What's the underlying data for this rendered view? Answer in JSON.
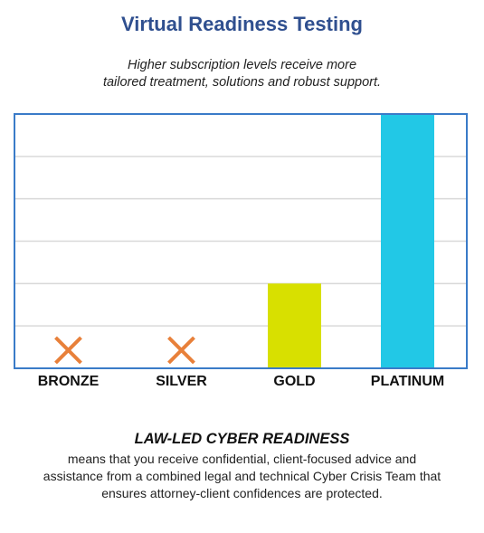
{
  "title": "Virtual Readiness Testing",
  "subtitle_lines": [
    "Higher subscription levels receive more",
    "tailored treatment, solutions and robust support."
  ],
  "colors": {
    "title": "#2f4f8f",
    "frame": "#3a7bc8",
    "gridline": "#d9d9d9",
    "cross": "#e8803a",
    "gold_bar": "#d8e000",
    "platinum_bar": "#22c8e6"
  },
  "chart_data": {
    "type": "bar",
    "categories": [
      "BRONZE",
      "SILVER",
      "GOLD",
      "PLATINUM"
    ],
    "values": [
      0,
      0,
      2,
      6
    ],
    "markers": [
      "cross",
      "cross",
      "none",
      "none"
    ],
    "bar_colors": [
      "#d8e000",
      "#d8e000",
      "#d8e000",
      "#22c8e6"
    ],
    "ylim": [
      0,
      6
    ],
    "grid": true,
    "y_tick_labels_shown": false,
    "xlabel": "",
    "ylabel": ""
  },
  "footer": {
    "heading": "LAW-LED CYBER READINESS",
    "body": "means that you receive confidential, client-focused advice and assistance from a combined legal and technical Cyber Crisis Team that ensures attorney-client confidences are protected."
  }
}
